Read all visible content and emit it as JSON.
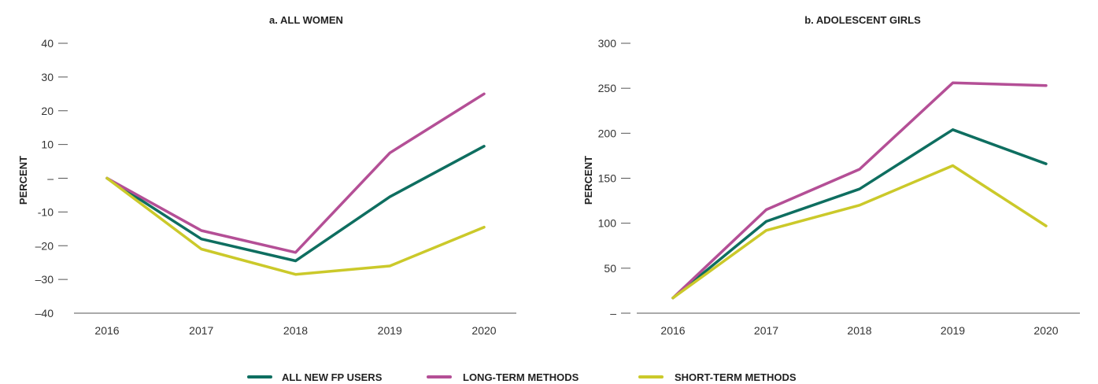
{
  "chart_data": [
    {
      "type": "line",
      "title": "a. ALL WOMEN",
      "ylabel": "PERCENT",
      "xlabel": "",
      "x": [
        "2016",
        "2017",
        "2018",
        "2019",
        "2020"
      ],
      "ylim": [
        -40,
        40
      ],
      "yticks": [
        {
          "value": 40,
          "label": "40"
        },
        {
          "value": 30,
          "label": "30"
        },
        {
          "value": 20,
          "label": "20"
        },
        {
          "value": 10,
          "label": "10"
        },
        {
          "value": 0,
          "label": "–"
        },
        {
          "value": -10,
          "label": "-10"
        },
        {
          "value": -20,
          "label": "–20"
        },
        {
          "value": -30,
          "label": "–30"
        },
        {
          "value": -40,
          "label": "–40"
        }
      ],
      "series": [
        {
          "name": "ALL NEW FP USERS",
          "values": [
            0,
            -18,
            -24.5,
            -5.5,
            9.5
          ]
        },
        {
          "name": "LONG-TERM METHODS",
          "values": [
            0,
            -15.5,
            -22,
            7.5,
            25
          ]
        },
        {
          "name": "SHORT-TERM METHODS",
          "values": [
            0,
            -21,
            -28.5,
            -26,
            -14.5
          ]
        }
      ]
    },
    {
      "type": "line",
      "title": "b. ADOLESCENT GIRLS",
      "ylabel": "PERCENT",
      "xlabel": "",
      "x": [
        "2016",
        "2017",
        "2018",
        "2019",
        "2020"
      ],
      "ylim": [
        0,
        300
      ],
      "yticks": [
        {
          "value": 300,
          "label": "300"
        },
        {
          "value": 250,
          "label": "250"
        },
        {
          "value": 200,
          "label": "200"
        },
        {
          "value": 150,
          "label": "150"
        },
        {
          "value": 100,
          "label": "100"
        },
        {
          "value": 50,
          "label": "50"
        },
        {
          "value": 0,
          "label": "–"
        }
      ],
      "series": [
        {
          "name": "ALL NEW FP USERS",
          "values": [
            17,
            102,
            138,
            204,
            166
          ]
        },
        {
          "name": "LONG-TERM METHODS",
          "values": [
            17,
            115,
            160,
            256,
            253
          ]
        },
        {
          "name": "SHORT-TERM METHODS",
          "values": [
            17,
            92,
            120,
            164,
            97
          ]
        }
      ]
    }
  ],
  "legend": [
    {
      "label": "ALL NEW FP USERS",
      "color": "#0e6e60"
    },
    {
      "label": "LONG-TERM METHODS",
      "color": "#b44f96"
    },
    {
      "label": "SHORT-TERM METHODS",
      "color": "#cbc92a"
    }
  ],
  "colors": {
    "all_new_fp_users": "#0e6e60",
    "long_term_methods": "#b44f96",
    "short_term_methods": "#cbc92a"
  }
}
